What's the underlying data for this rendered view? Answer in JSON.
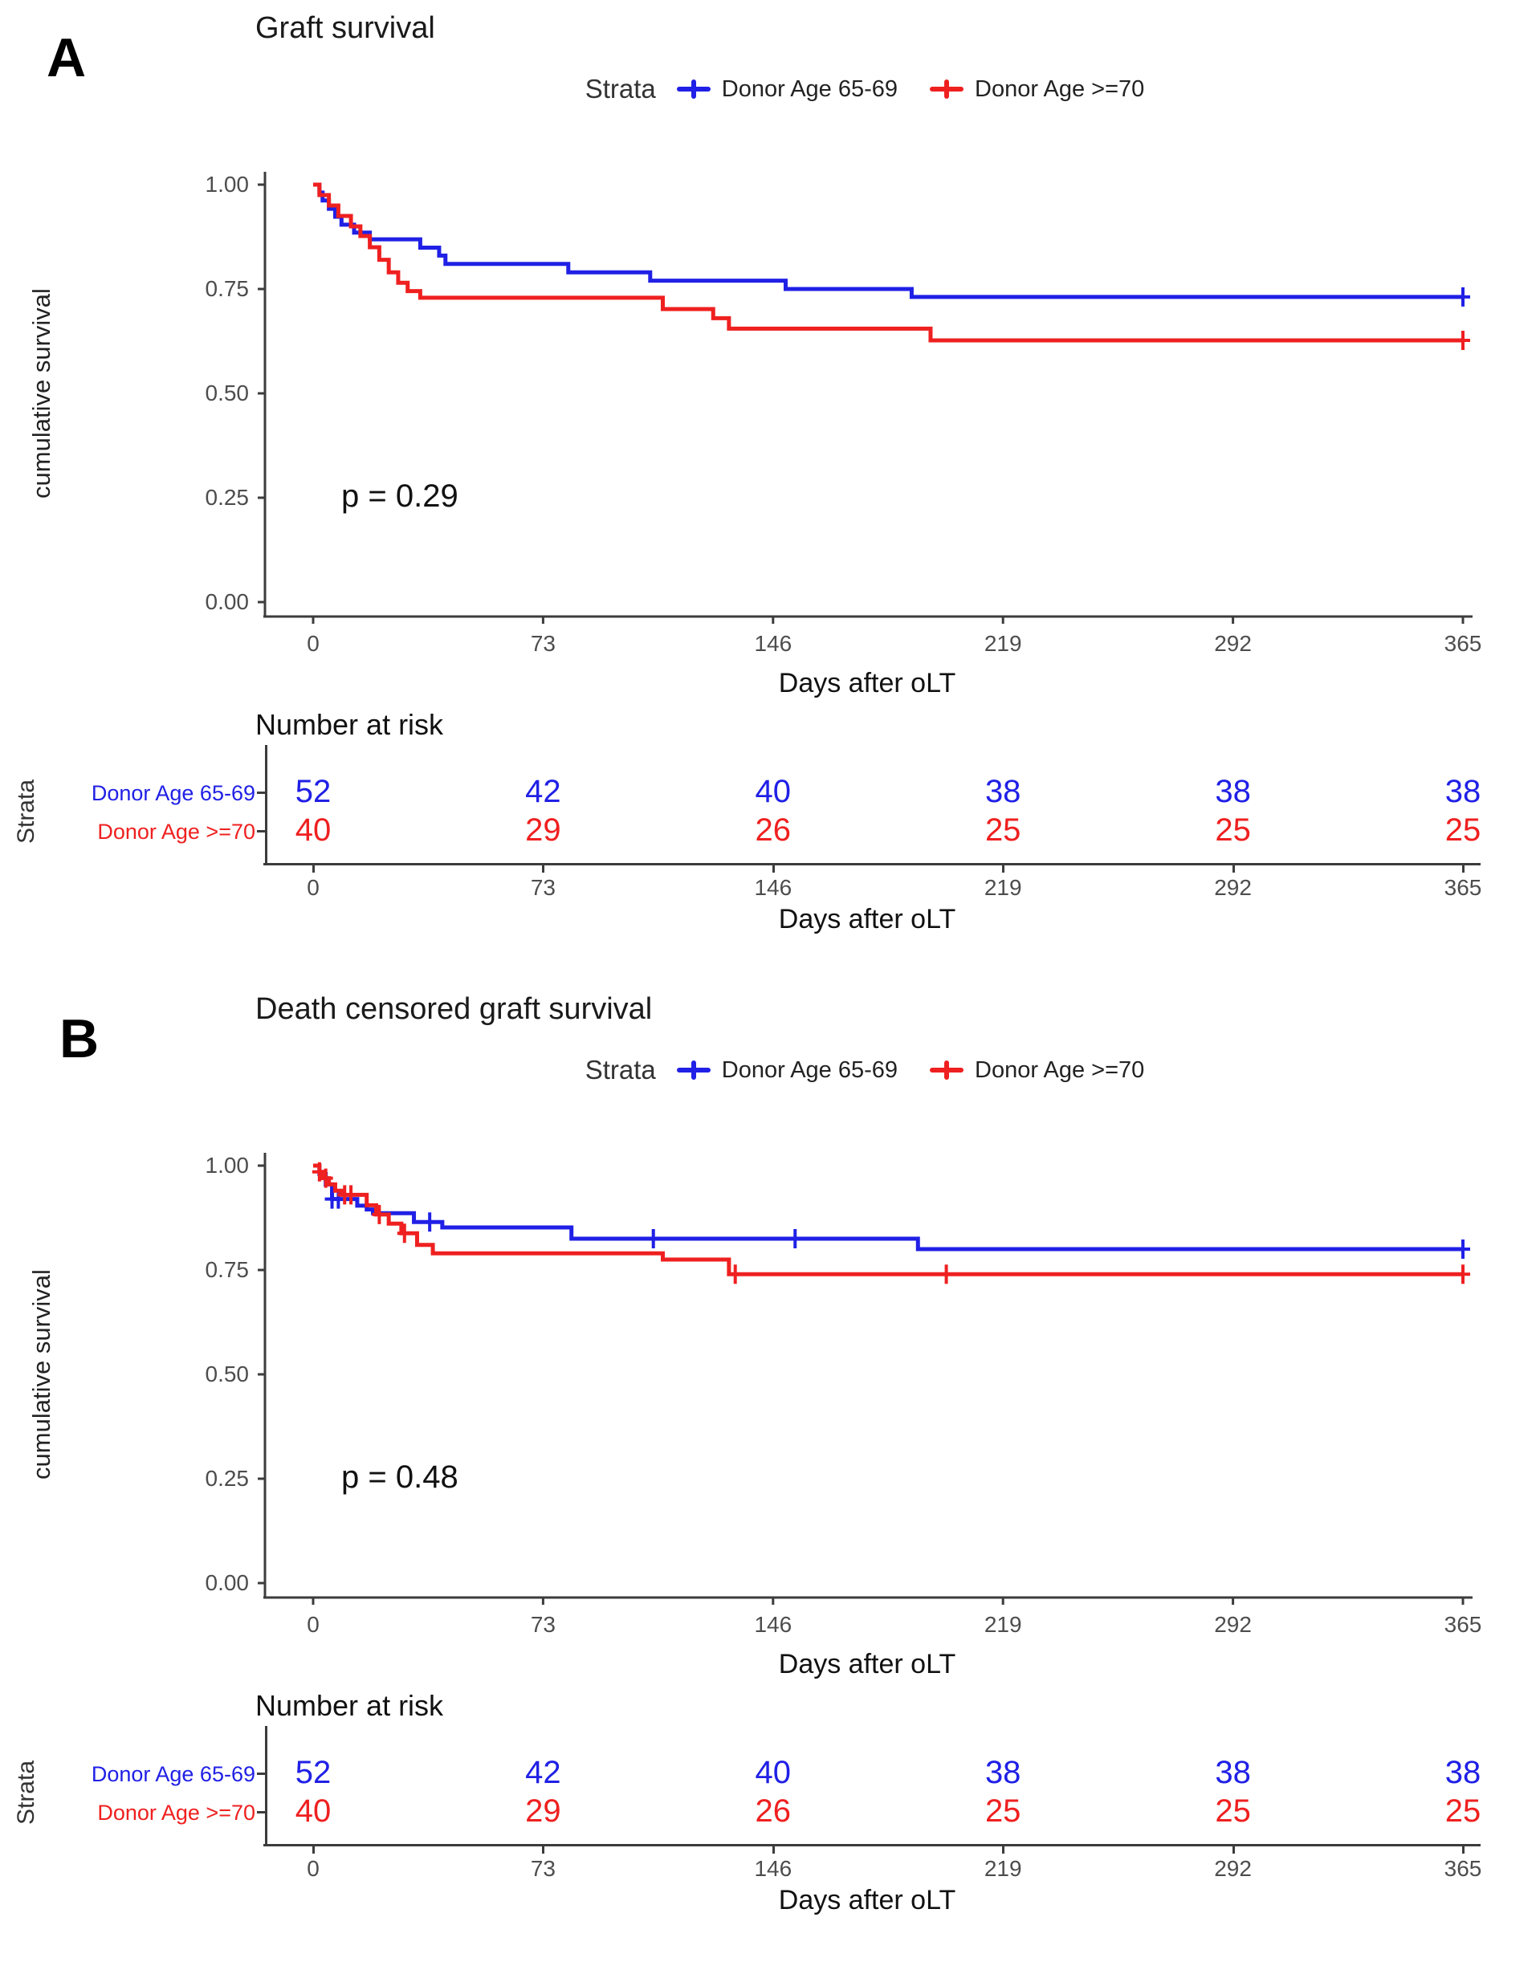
{
  "chart_data": [
    {
      "type": "line",
      "subtype": "kaplan-meier-step",
      "panel_label": "A",
      "title": "Graft survival",
      "legend_title": "Strata",
      "p_label": "p = 0.29",
      "xlabel": "Days after oLT",
      "ylabel": "cumulative survival",
      "xlim": [
        0,
        365
      ],
      "ylim": [
        0.0,
        1.0
      ],
      "x_ticks": [
        "0",
        "73",
        "146",
        "219",
        "292",
        "365"
      ],
      "y_ticks": [
        "1.00",
        "0.75",
        "0.50",
        "0.25",
        "0.00"
      ],
      "grid": "off",
      "legend_position": "top",
      "series": [
        {
          "name": "Donor Age 65-69",
          "color": "#2020e6",
          "x": [
            0,
            2,
            3,
            5,
            7,
            9,
            13,
            18,
            34,
            40,
            42,
            81,
            107,
            150,
            190
          ],
          "y": [
            1.0,
            0.981,
            0.962,
            0.942,
            0.923,
            0.904,
            0.885,
            0.869,
            0.849,
            0.83,
            0.81,
            0.79,
            0.77,
            0.75,
            0.731
          ],
          "censors": [
            [
              365,
              0.731
            ]
          ]
        },
        {
          "name": "Donor Age >=70",
          "color": "#ef2020",
          "x": [
            0,
            2,
            5,
            8,
            12,
            15,
            18,
            21,
            24,
            27,
            30,
            34,
            111,
            127,
            132,
            196
          ],
          "y": [
            1.0,
            0.975,
            0.95,
            0.925,
            0.9,
            0.877,
            0.85,
            0.82,
            0.79,
            0.765,
            0.745,
            0.729,
            0.702,
            0.68,
            0.655,
            0.627
          ],
          "censors": [
            [
              365,
              0.627
            ]
          ]
        }
      ],
      "risk_table": {
        "title": "Number at risk",
        "strata_label": "Strata",
        "x_ticks": [
          "0",
          "73",
          "146",
          "219",
          "292",
          "365"
        ],
        "xlabel": "Days after oLT",
        "rows": [
          {
            "label": "Donor Age 65-69",
            "color": "#2020e6",
            "values": [
              "52",
              "42",
              "40",
              "38",
              "38",
              "38"
            ]
          },
          {
            "label": "Donor Age >=70",
            "color": "#ef2020",
            "values": [
              "40",
              "29",
              "26",
              "25",
              "25",
              "25"
            ]
          }
        ]
      }
    },
    {
      "type": "line",
      "subtype": "kaplan-meier-step",
      "panel_label": "B",
      "title": "Death censored graft survival",
      "legend_title": "Strata",
      "p_label": "p = 0.48",
      "xlabel": "Days after oLT",
      "ylabel": "cumulative survival",
      "xlim": [
        0,
        365
      ],
      "ylim": [
        0.0,
        1.0
      ],
      "x_ticks": [
        "0",
        "73",
        "146",
        "219",
        "292",
        "365"
      ],
      "y_ticks": [
        "1.00",
        "0.75",
        "0.50",
        "0.25",
        "0.00"
      ],
      "grid": "off",
      "legend_position": "top",
      "series": [
        {
          "name": "Donor Age 65-69",
          "color": "#2020e6",
          "x": [
            0,
            2,
            4,
            6,
            14,
            17,
            19,
            32,
            41,
            82,
            192
          ],
          "y": [
            1.0,
            0.98,
            0.955,
            0.92,
            0.904,
            0.895,
            0.886,
            0.865,
            0.852,
            0.825,
            0.8
          ],
          "censors": [
            [
              6,
              0.92
            ],
            [
              8,
              0.92
            ],
            [
              37,
              0.865
            ],
            [
              108,
              0.825
            ],
            [
              153,
              0.825
            ],
            [
              365,
              0.8
            ]
          ]
        },
        {
          "name": "Donor Age >=70",
          "color": "#ef2020",
          "x": [
            0,
            2,
            3,
            5,
            7,
            9,
            17,
            20,
            24,
            28,
            33,
            38,
            111,
            132
          ],
          "y": [
            1.0,
            0.985,
            0.97,
            0.955,
            0.94,
            0.93,
            0.905,
            0.883,
            0.861,
            0.838,
            0.81,
            0.79,
            0.775,
            0.74
          ],
          "censors": [
            [
              2,
              0.985
            ],
            [
              4,
              0.97
            ],
            [
              10,
              0.93
            ],
            [
              12,
              0.93
            ],
            [
              21,
              0.883
            ],
            [
              29,
              0.838
            ],
            [
              134,
              0.74
            ],
            [
              201,
              0.74
            ],
            [
              365,
              0.74
            ]
          ]
        }
      ],
      "risk_table": {
        "title": "Number at risk",
        "strata_label": "Strata",
        "x_ticks": [
          "0",
          "73",
          "146",
          "219",
          "292",
          "365"
        ],
        "xlabel": "Days after oLT",
        "rows": [
          {
            "label": "Donor Age 65-69",
            "color": "#2020e6",
            "values": [
              "52",
              "42",
              "40",
              "38",
              "38",
              "38"
            ]
          },
          {
            "label": "Donor Age >=70",
            "color": "#ef2020",
            "values": [
              "40",
              "29",
              "26",
              "25",
              "25",
              "25"
            ]
          }
        ]
      }
    }
  ]
}
